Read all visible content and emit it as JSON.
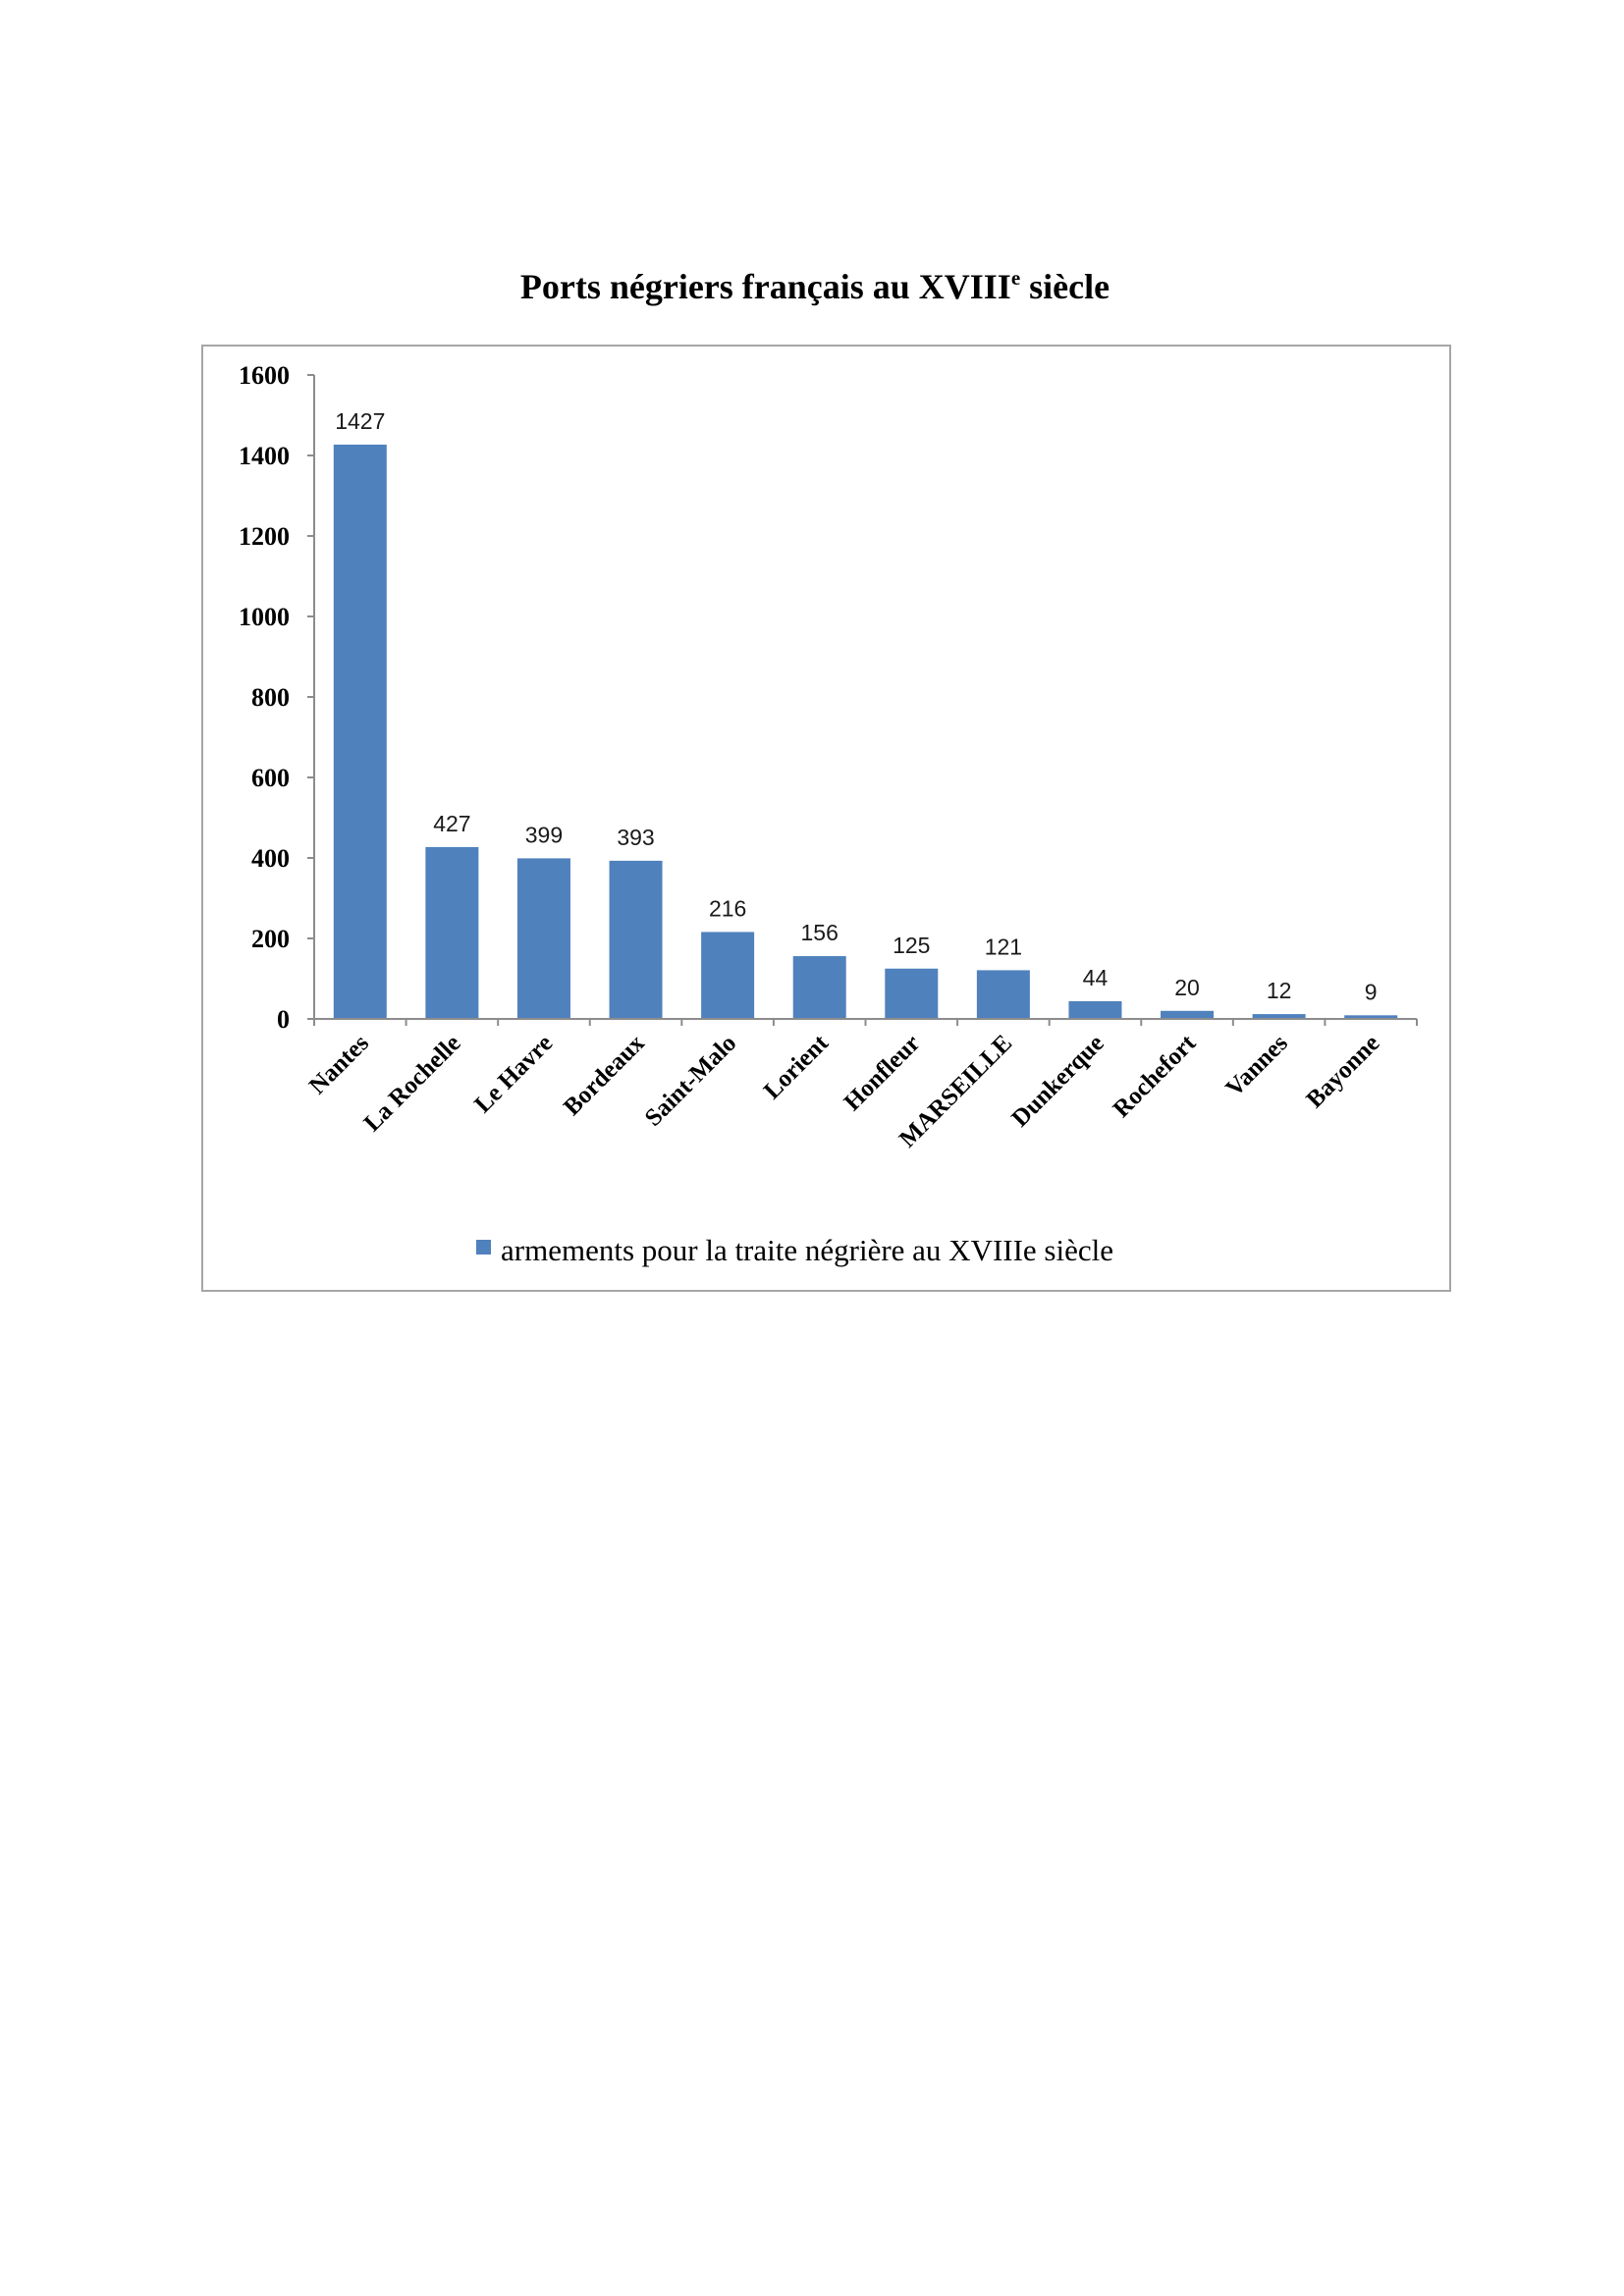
{
  "chart_data": {
    "type": "bar",
    "title": [
      "Ports négriers français au XVIII",
      "e",
      " siècle"
    ],
    "categories": [
      "Nantes",
      "La Rochelle",
      "Le Havre",
      "Bordeaux",
      "Saint-Malo",
      "Lorient",
      "Honfleur",
      "MARSEILLE",
      "Dunkerque",
      "Rochefort",
      "Vannes",
      "Bayonne"
    ],
    "series": [
      {
        "name": "armements pour la traite négrière au XVIIIe siècle",
        "values": [
          1427,
          427,
          399,
          393,
          216,
          156,
          125,
          121,
          44,
          20,
          12,
          9
        ],
        "color": "#4F81BD"
      }
    ],
    "data_labels": true,
    "xlabel": "",
    "ylabel": "",
    "ylim": [
      0,
      1600
    ],
    "yticks": [
      0,
      200,
      400,
      600,
      800,
      1000,
      1200,
      1400,
      1600
    ],
    "grid": false,
    "legend": "bottom"
  },
  "colors": {
    "bar": "#4F81BD",
    "frame": "#a6a6a6",
    "axis": "#8c8c8c"
  }
}
